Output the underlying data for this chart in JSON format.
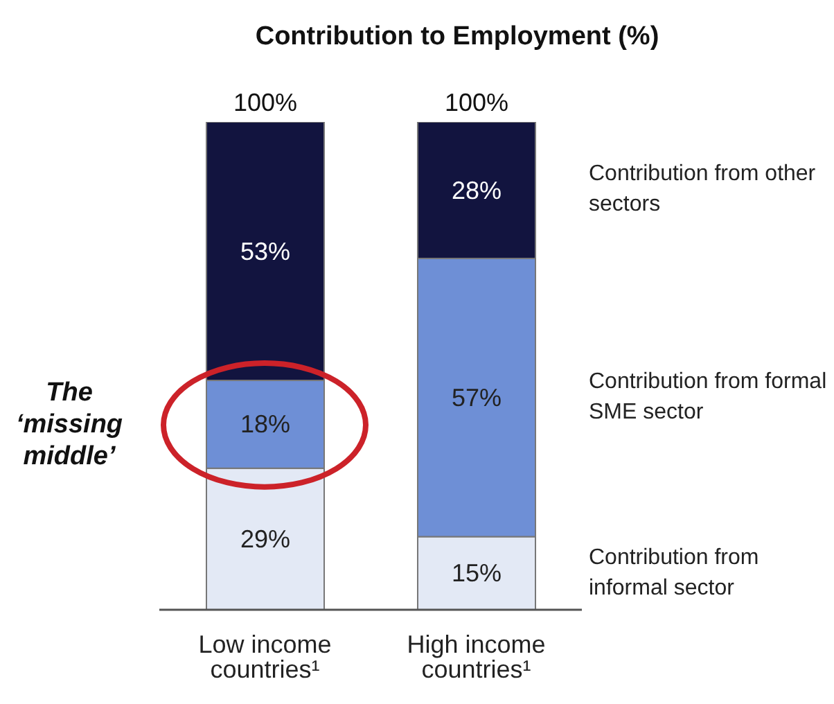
{
  "chart_data": {
    "type": "bar",
    "title": "Contribution to Employment (%)",
    "stacked": true,
    "legend": "right",
    "categories": [
      "Low income countries¹",
      "High income countries¹"
    ],
    "series": [
      {
        "name": "Contribution from informal sector",
        "color": "#e3e9f5",
        "values": [
          29,
          15
        ],
        "value_labels": [
          "29%",
          "15%"
        ]
      },
      {
        "name": "Contribution from formal SME sector",
        "color": "#6e8fd6",
        "values": [
          18,
          57
        ],
        "value_labels": [
          "18%",
          "57%"
        ]
      },
      {
        "name": "Contribution from other sectors",
        "color": "#12143f",
        "values": [
          53,
          28
        ],
        "value_labels": [
          "53%",
          "28%"
        ]
      }
    ],
    "totals": [
      "100%",
      "100%"
    ],
    "annotations": [
      "The ‘missing middle’"
    ]
  }
}
